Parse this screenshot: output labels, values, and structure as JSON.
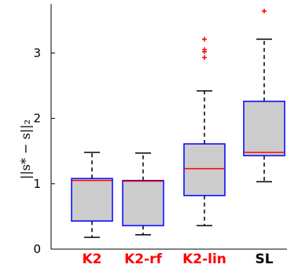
{
  "chart_data": {
    "type": "box",
    "ylabel": "||s* − s||₂",
    "ylim": [
      0,
      3.75
    ],
    "y_ticks": [
      0,
      1,
      2,
      3
    ],
    "grid": false,
    "categories": [
      {
        "name": "K2",
        "label_color": "#ff0000",
        "whisker_low": 0.18,
        "q1": 0.43,
        "median": 1.05,
        "q3": 1.08,
        "whisker_high": 1.48,
        "outliers": []
      },
      {
        "name": "K2-rf",
        "label_color": "#ff0000",
        "whisker_low": 0.22,
        "q1": 0.36,
        "median": 1.04,
        "q3": 1.05,
        "whisker_high": 1.47,
        "outliers": []
      },
      {
        "name": "K2-lin",
        "label_color": "#ff0000",
        "whisker_low": 0.36,
        "q1": 0.82,
        "median": 1.23,
        "q3": 1.61,
        "whisker_high": 2.42,
        "outliers": [
          2.93,
          3.02,
          3.05,
          3.21
        ]
      },
      {
        "name": "SL",
        "label_color": "#000000",
        "whisker_low": 1.03,
        "q1": 1.43,
        "median": 1.48,
        "q3": 2.26,
        "whisker_high": 3.21,
        "outliers": [
          3.64
        ]
      }
    ],
    "colors": {
      "box_fill": "#cccccc",
      "box_edge": "#0000ff",
      "median": "#ff0000",
      "whisker": "#000000",
      "outlier": "#ff0000"
    }
  }
}
